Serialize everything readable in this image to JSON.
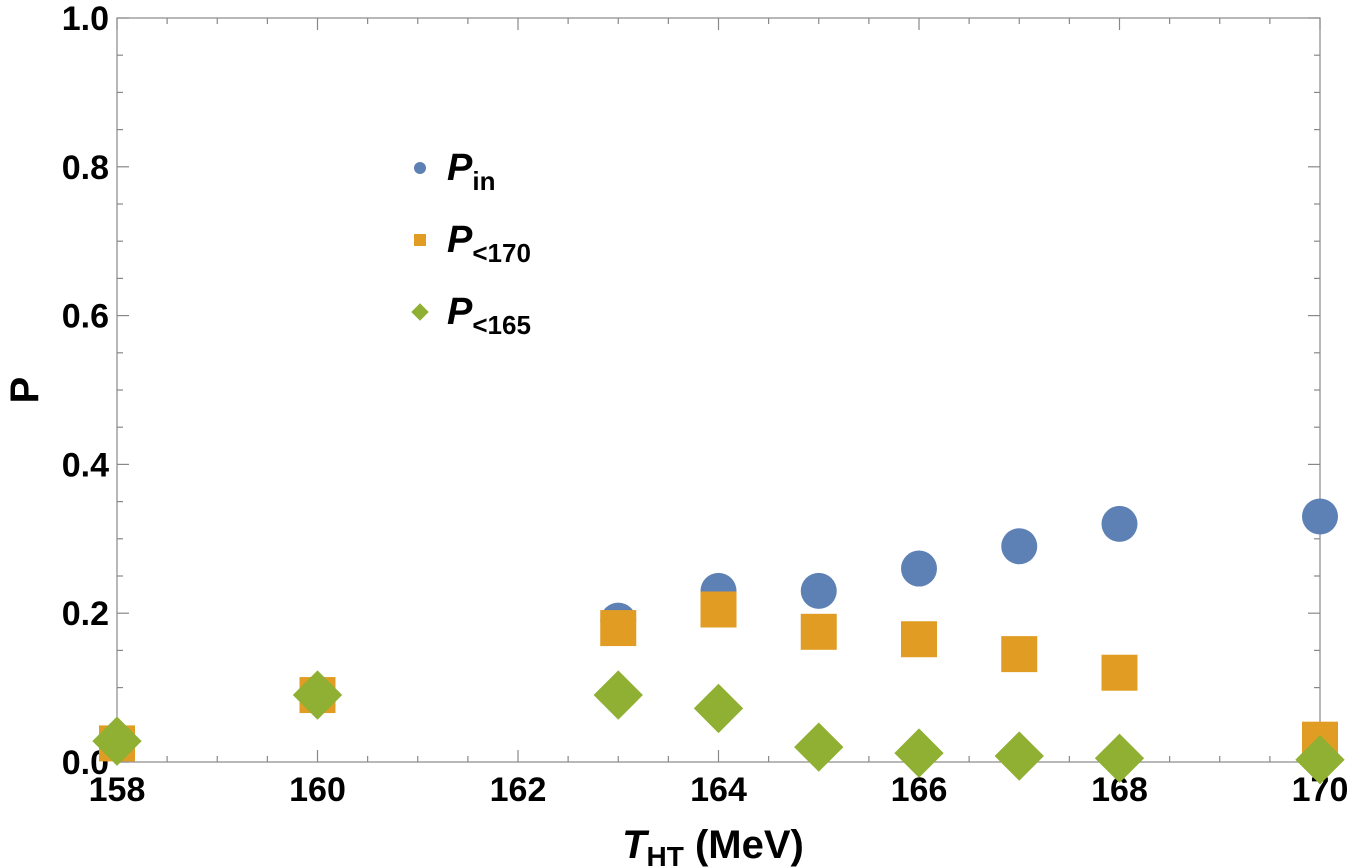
{
  "chart_data": {
    "type": "scatter",
    "title": "",
    "xlabel": {
      "main": "T",
      "sub": "HT",
      "rest": " (MeV)"
    },
    "ylabel": "P",
    "xlim": [
      158,
      170
    ],
    "ylim": [
      0,
      1
    ],
    "x_ticks": [
      "158",
      "160",
      "162",
      "164",
      "166",
      "168",
      "170"
    ],
    "y_ticks": [
      "0.0",
      "0.2",
      "0.4",
      "0.6",
      "0.8",
      "1.0"
    ],
    "grid": false,
    "legend_position": "upper-left-center",
    "series": [
      {
        "name_main": "P",
        "name_sub": "in",
        "marker": "circle",
        "color": "#5E81B5",
        "points": [
          [
            163,
            0.19
          ],
          [
            164,
            0.23
          ],
          [
            165,
            0.23
          ],
          [
            166,
            0.26
          ],
          [
            167,
            0.29
          ],
          [
            168,
            0.32
          ],
          [
            170,
            0.33
          ]
        ]
      },
      {
        "name_main": "P",
        "name_sub": "<170",
        "marker": "square",
        "color": "#E19C24",
        "points": [
          [
            158,
            0.025
          ],
          [
            160,
            0.09
          ],
          [
            163,
            0.18
          ],
          [
            164,
            0.205
          ],
          [
            165,
            0.175
          ],
          [
            166,
            0.165
          ],
          [
            167,
            0.145
          ],
          [
            168,
            0.12
          ],
          [
            170,
            0.03
          ]
        ]
      },
      {
        "name_main": "P",
        "name_sub": "<165",
        "marker": "diamond",
        "color": "#8FB032",
        "points": [
          [
            158,
            0.028
          ],
          [
            160,
            0.09
          ],
          [
            163,
            0.09
          ],
          [
            164,
            0.072
          ],
          [
            165,
            0.02
          ],
          [
            166,
            0.012
          ],
          [
            167,
            0.008
          ],
          [
            168,
            0.005
          ],
          [
            170,
            0.003
          ]
        ]
      }
    ]
  }
}
